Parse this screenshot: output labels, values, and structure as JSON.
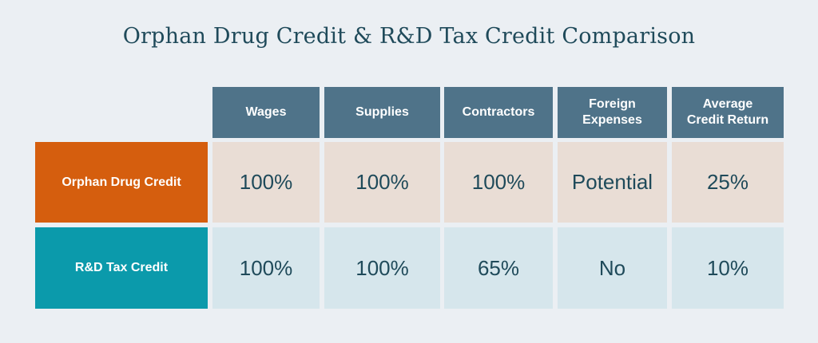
{
  "title": "Orphan Drug Credit & R&D Tax Credit Comparison",
  "columns": [
    "Wages",
    "Supplies",
    "Contractors",
    "Foreign\nExpenses",
    "Average\nCredit Return"
  ],
  "rows": [
    {
      "label": "Orphan Drug Credit",
      "values": [
        "100%",
        "100%",
        "100%",
        "Potential",
        "25%"
      ]
    },
    {
      "label": "R&D Tax Credit",
      "values": [
        "100%",
        "100%",
        "65%",
        "No",
        "10%"
      ]
    }
  ],
  "colors": {
    "header": "#4f7389",
    "orphan_label": "#d55e0e",
    "orphan_cells": "#e9ddd5",
    "rd_label": "#0b9aab",
    "rd_cells": "#d6e6ec",
    "background": "#ebeff3"
  }
}
